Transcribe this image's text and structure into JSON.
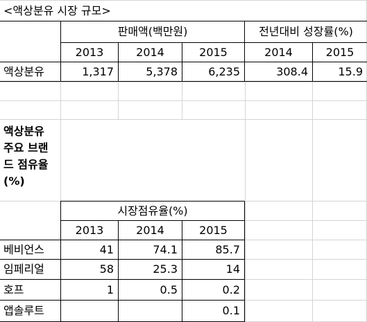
{
  "title": "<액상분유 시장 규모>",
  "table1": {
    "sales_header": "판매액(백만원)",
    "growth_header": "전년대비 성장률(%)",
    "sales_years": [
      "2013",
      "2014",
      "2015"
    ],
    "growth_years": [
      "2014",
      "2015"
    ],
    "row_label": "액상분유",
    "sales_values": [
      "1,317",
      "5,378",
      "6,235"
    ],
    "growth_values": [
      "308.4",
      "15.9"
    ]
  },
  "table2": {
    "title_lines": [
      "액상분유",
      "주요 브랜",
      "드 점유율",
      "(%)"
    ],
    "header": "시장점유율(%)",
    "years": [
      "2013",
      "2014",
      "2015"
    ],
    "rows": [
      {
        "brand": "베비언스",
        "values": [
          "41",
          "74.1",
          "85.7"
        ]
      },
      {
        "brand": "임페리얼",
        "values": [
          "58",
          "25.3",
          "14"
        ]
      },
      {
        "brand": "호프",
        "values": [
          "1",
          "0.5",
          "0.2"
        ]
      },
      {
        "brand": "앱솔루트",
        "values": [
          "",
          "",
          "0.1"
        ]
      }
    ]
  }
}
